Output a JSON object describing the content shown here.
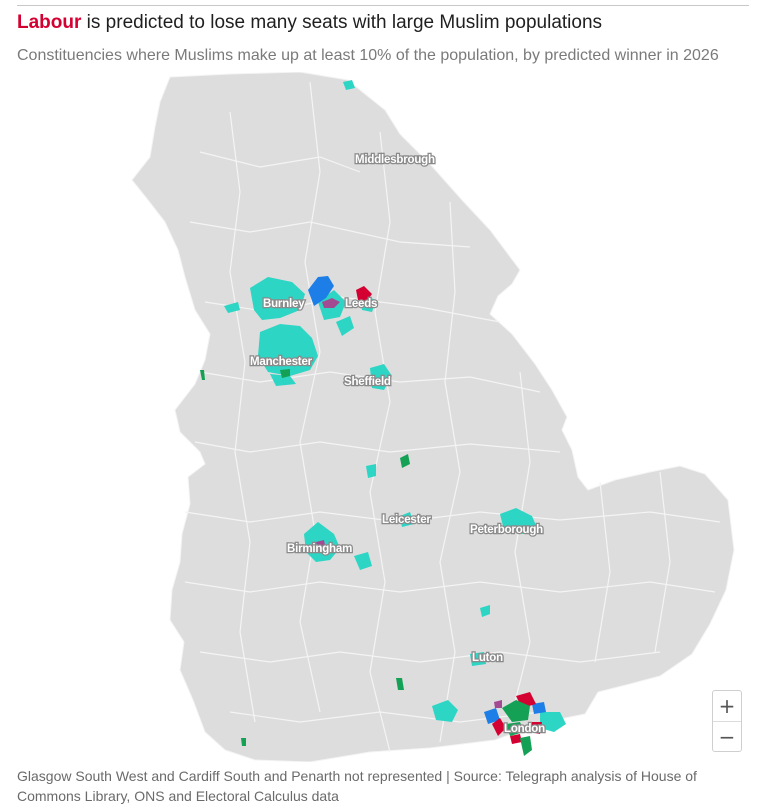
{
  "header": {
    "title_party": "Labour",
    "title_rest": " is predicted to lose many seats with large Muslim populations",
    "subtitle": "Constituencies where Muslims make up at least 10% of the population, by predicted winner in 2026"
  },
  "map": {
    "cities": [
      {
        "name": "Middlesbrough"
      },
      {
        "name": "Burnley"
      },
      {
        "name": "Leeds"
      },
      {
        "name": "Manchester"
      },
      {
        "name": "Sheffield"
      },
      {
        "name": "Leicester"
      },
      {
        "name": "Peterborough"
      },
      {
        "name": "Birmingham"
      },
      {
        "name": "Luton"
      },
      {
        "name": "London"
      }
    ],
    "colors": {
      "land": "#dddddd",
      "border": "#f4f4f4",
      "labour": "#d50032",
      "reform": "#2cd5c4",
      "conservative": "#1c7ee6",
      "green": "#14a155",
      "independent": "#a24a92"
    },
    "controls": {
      "zoom_in": "+",
      "zoom_out": "−"
    }
  },
  "footer": {
    "source": "Glasgow South West and Cardiff South and Penarth not represented | Source: Telegraph analysis of House of Commons Library, ONS and Electoral Calculus data"
  }
}
